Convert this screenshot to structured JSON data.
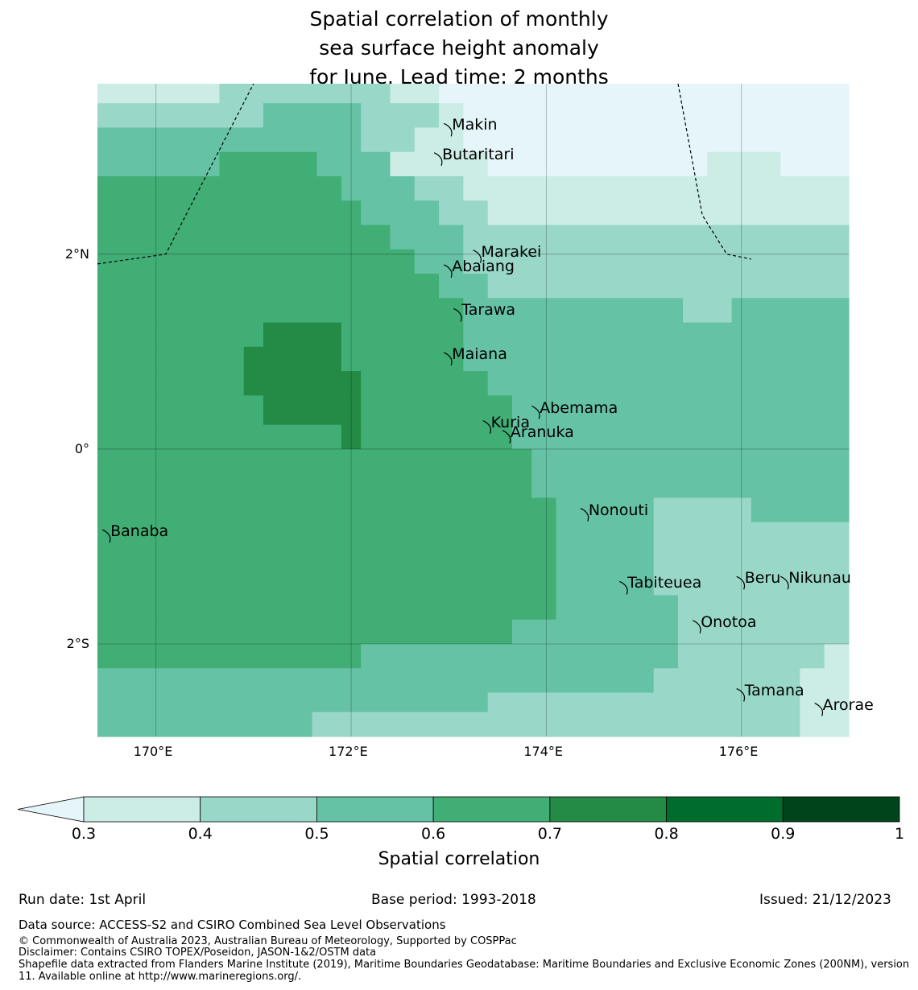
{
  "title_lines": [
    "Spatial correlation of monthly",
    "sea surface height anomaly",
    "for June. Lead time: 2 months"
  ],
  "map": {
    "lon_range": [
      169.4,
      177.1
    ],
    "lat_range": [
      -2.95,
      3.75
    ],
    "lon_ticks": [
      {
        "lon": 170,
        "label": "170°E"
      },
      {
        "lon": 172,
        "label": "172°E"
      },
      {
        "lon": 174,
        "label": "174°E"
      },
      {
        "lon": 176,
        "label": "176°E"
      }
    ],
    "lat_ticks": [
      {
        "lat": 2,
        "label": "2°N"
      },
      {
        "lat": 0,
        "label": "0°"
      },
      {
        "lat": -2,
        "label": "2°S"
      }
    ],
    "islands": [
      {
        "name": "Makin",
        "lon": 173.0,
        "lat": 3.3
      },
      {
        "name": "Butaritari",
        "lon": 172.9,
        "lat": 3.0
      },
      {
        "name": "Marakei",
        "lon": 173.3,
        "lat": 2.0
      },
      {
        "name": "Abaiang",
        "lon": 173.0,
        "lat": 1.85
      },
      {
        "name": "Tarawa",
        "lon": 173.1,
        "lat": 1.4
      },
      {
        "name": "Maiana",
        "lon": 173.0,
        "lat": 0.95
      },
      {
        "name": "Abemama",
        "lon": 173.9,
        "lat": 0.4
      },
      {
        "name": "Kuria",
        "lon": 173.4,
        "lat": 0.25
      },
      {
        "name": "Aranuka",
        "lon": 173.6,
        "lat": 0.15
      },
      {
        "name": "Nonouti",
        "lon": 174.4,
        "lat": -0.65
      },
      {
        "name": "Banaba",
        "lon": 169.5,
        "lat": -0.87
      },
      {
        "name": "Tabiteuea",
        "lon": 174.8,
        "lat": -1.4
      },
      {
        "name": "Beru",
        "lon": 176.0,
        "lat": -1.35
      },
      {
        "name": "Nikunau",
        "lon": 176.45,
        "lat": -1.35
      },
      {
        "name": "Onotoa",
        "lon": 175.55,
        "lat": -1.8
      },
      {
        "name": "Tamana",
        "lon": 176.0,
        "lat": -2.5
      },
      {
        "name": "Arorae",
        "lon": 176.8,
        "lat": -2.65
      }
    ],
    "grid_cells": [
      {
        "lon0": 169.4,
        "lon1": 170.65,
        "lat0": 3.55,
        "lat1": 3.75,
        "level": 0
      },
      {
        "lon0": 170.65,
        "lon1": 172.4,
        "lat0": 3.55,
        "lat1": 3.75,
        "level": 1
      },
      {
        "lon0": 172.4,
        "lon1": 172.9,
        "lat0": 3.55,
        "lat1": 3.75,
        "level": 0
      },
      {
        "lon0": 172.9,
        "lon1": 177.1,
        "lat0": 3.55,
        "lat1": 3.75,
        "level": -1
      },
      {
        "lon0": 169.4,
        "lon1": 171.1,
        "lat0": 3.3,
        "lat1": 3.55,
        "level": 1
      },
      {
        "lon0": 171.1,
        "lon1": 172.1,
        "lat0": 3.3,
        "lat1": 3.55,
        "level": 2
      },
      {
        "lon0": 172.1,
        "lon1": 172.9,
        "lat0": 3.3,
        "lat1": 3.55,
        "level": 1
      },
      {
        "lon0": 172.9,
        "lon1": 173.15,
        "lat0": 3.3,
        "lat1": 3.55,
        "level": 0
      },
      {
        "lon0": 173.15,
        "lon1": 177.1,
        "lat0": 3.3,
        "lat1": 3.55,
        "level": -1
      },
      {
        "lon0": 169.4,
        "lon1": 172.1,
        "lat0": 3.05,
        "lat1": 3.3,
        "level": 2
      },
      {
        "lon0": 172.1,
        "lon1": 172.65,
        "lat0": 3.05,
        "lat1": 3.3,
        "level": 1
      },
      {
        "lon0": 172.65,
        "lon1": 173.15,
        "lat0": 3.05,
        "lat1": 3.3,
        "level": 0
      },
      {
        "lon0": 173.15,
        "lon1": 177.1,
        "lat0": 3.05,
        "lat1": 3.3,
        "level": -1
      },
      {
        "lon0": 169.4,
        "lon1": 170.65,
        "lat0": 2.8,
        "lat1": 3.05,
        "level": 2
      },
      {
        "lon0": 170.65,
        "lon1": 171.65,
        "lat0": 2.8,
        "lat1": 3.05,
        "level": 3
      },
      {
        "lon0": 171.65,
        "lon1": 172.4,
        "lat0": 2.8,
        "lat1": 3.05,
        "level": 2
      },
      {
        "lon0": 172.4,
        "lon1": 173.4,
        "lat0": 2.8,
        "lat1": 3.05,
        "level": 0
      },
      {
        "lon0": 173.4,
        "lon1": 175.65,
        "lat0": 2.8,
        "lat1": 3.05,
        "level": -1
      },
      {
        "lon0": 175.65,
        "lon1": 176.4,
        "lat0": 2.8,
        "lat1": 3.05,
        "level": 0
      },
      {
        "lon0": 176.4,
        "lon1": 177.1,
        "lat0": 2.8,
        "lat1": 3.05,
        "level": -1
      },
      {
        "lon0": 169.4,
        "lon1": 171.9,
        "lat0": 2.55,
        "lat1": 2.8,
        "level": 3
      },
      {
        "lon0": 171.9,
        "lon1": 172.65,
        "lat0": 2.55,
        "lat1": 2.8,
        "level": 2
      },
      {
        "lon0": 172.65,
        "lon1": 173.15,
        "lat0": 2.55,
        "lat1": 2.8,
        "level": 1
      },
      {
        "lon0": 173.15,
        "lon1": 177.1,
        "lat0": 2.55,
        "lat1": 2.8,
        "level": 0
      },
      {
        "lon0": 169.4,
        "lon1": 172.1,
        "lat0": 2.3,
        "lat1": 2.55,
        "level": 3
      },
      {
        "lon0": 172.1,
        "lon1": 172.9,
        "lat0": 2.3,
        "lat1": 2.55,
        "level": 2
      },
      {
        "lon0": 172.9,
        "lon1": 173.4,
        "lat0": 2.3,
        "lat1": 2.55,
        "level": 1
      },
      {
        "lon0": 173.4,
        "lon1": 177.1,
        "lat0": 2.3,
        "lat1": 2.55,
        "level": 0
      },
      {
        "lon0": 169.4,
        "lon1": 172.4,
        "lat0": 2.05,
        "lat1": 2.3,
        "level": 3
      },
      {
        "lon0": 172.4,
        "lon1": 173.15,
        "lat0": 2.05,
        "lat1": 2.3,
        "level": 2
      },
      {
        "lon0": 173.15,
        "lon1": 173.4,
        "lat0": 2.05,
        "lat1": 2.3,
        "level": 1
      },
      {
        "lon0": 173.4,
        "lon1": 177.1,
        "lat0": 2.05,
        "lat1": 2.3,
        "level": 1
      },
      {
        "lon0": 169.4,
        "lon1": 172.65,
        "lat0": 1.8,
        "lat1": 2.05,
        "level": 3
      },
      {
        "lon0": 172.65,
        "lon1": 173.15,
        "lat0": 1.8,
        "lat1": 2.05,
        "level": 2
      },
      {
        "lon0": 173.15,
        "lon1": 177.1,
        "lat0": 1.8,
        "lat1": 2.05,
        "level": 1
      },
      {
        "lon0": 169.4,
        "lon1": 172.9,
        "lat0": 1.55,
        "lat1": 1.8,
        "level": 3
      },
      {
        "lon0": 172.9,
        "lon1": 173.4,
        "lat0": 1.55,
        "lat1": 1.8,
        "level": 2
      },
      {
        "lon0": 173.4,
        "lon1": 177.1,
        "lat0": 1.55,
        "lat1": 1.8,
        "level": 1
      },
      {
        "lon0": 169.4,
        "lon1": 173.15,
        "lat0": 1.3,
        "lat1": 1.55,
        "level": 3
      },
      {
        "lon0": 173.15,
        "lon1": 175.4,
        "lat0": 1.3,
        "lat1": 1.55,
        "level": 2
      },
      {
        "lon0": 175.4,
        "lon1": 175.9,
        "lat0": 1.3,
        "lat1": 1.55,
        "level": 1
      },
      {
        "lon0": 175.9,
        "lon1": 177.1,
        "lat0": 1.3,
        "lat1": 1.55,
        "level": 2
      },
      {
        "lon0": 169.4,
        "lon1": 171.1,
        "lat0": 1.05,
        "lat1": 1.3,
        "level": 3
      },
      {
        "lon0": 171.1,
        "lon1": 171.9,
        "lat0": 1.05,
        "lat1": 1.3,
        "level": 4
      },
      {
        "lon0": 171.9,
        "lon1": 173.15,
        "lat0": 1.05,
        "lat1": 1.3,
        "level": 3
      },
      {
        "lon0": 173.15,
        "lon1": 177.1,
        "lat0": 1.05,
        "lat1": 1.3,
        "level": 2
      },
      {
        "lon0": 169.4,
        "lon1": 170.9,
        "lat0": 0.8,
        "lat1": 1.05,
        "level": 3
      },
      {
        "lon0": 170.9,
        "lon1": 171.9,
        "lat0": 0.8,
        "lat1": 1.05,
        "level": 4
      },
      {
        "lon0": 171.9,
        "lon1": 173.15,
        "lat0": 0.8,
        "lat1": 1.05,
        "level": 3
      },
      {
        "lon0": 173.15,
        "lon1": 177.1,
        "lat0": 0.8,
        "lat1": 1.05,
        "level": 2
      },
      {
        "lon0": 169.4,
        "lon1": 170.9,
        "lat0": 0.55,
        "lat1": 0.8,
        "level": 3
      },
      {
        "lon0": 170.9,
        "lon1": 172.1,
        "lat0": 0.55,
        "lat1": 0.8,
        "level": 4
      },
      {
        "lon0": 172.1,
        "lon1": 173.4,
        "lat0": 0.55,
        "lat1": 0.8,
        "level": 3
      },
      {
        "lon0": 173.4,
        "lon1": 177.1,
        "lat0": 0.55,
        "lat1": 0.8,
        "level": 2
      },
      {
        "lon0": 169.4,
        "lon1": 171.1,
        "lat0": 0.25,
        "lat1": 0.55,
        "level": 3
      },
      {
        "lon0": 171.1,
        "lon1": 172.1,
        "lat0": 0.25,
        "lat1": 0.55,
        "level": 4
      },
      {
        "lon0": 172.1,
        "lon1": 173.65,
        "lat0": 0.25,
        "lat1": 0.55,
        "level": 3
      },
      {
        "lon0": 173.65,
        "lon1": 177.1,
        "lat0": 0.25,
        "lat1": 0.55,
        "level": 2
      },
      {
        "lon0": 169.4,
        "lon1": 171.9,
        "lat0": 0.0,
        "lat1": 0.25,
        "level": 3
      },
      {
        "lon0": 171.9,
        "lon1": 172.1,
        "lat0": 0.0,
        "lat1": 0.25,
        "level": 4
      },
      {
        "lon0": 172.1,
        "lon1": 173.65,
        "lat0": 0.0,
        "lat1": 0.25,
        "level": 3
      },
      {
        "lon0": 173.65,
        "lon1": 177.1,
        "lat0": 0.0,
        "lat1": 0.25,
        "level": 2
      },
      {
        "lon0": 169.4,
        "lon1": 173.85,
        "lat0": -0.25,
        "lat1": 0.0,
        "level": 3
      },
      {
        "lon0": 173.85,
        "lon1": 177.1,
        "lat0": -0.25,
        "lat1": 0.0,
        "level": 2
      },
      {
        "lon0": 169.4,
        "lon1": 173.85,
        "lat0": -0.5,
        "lat1": -0.25,
        "level": 3
      },
      {
        "lon0": 173.85,
        "lon1": 177.1,
        "lat0": -0.5,
        "lat1": -0.25,
        "level": 2
      },
      {
        "lon0": 169.4,
        "lon1": 174.1,
        "lat0": -0.75,
        "lat1": -0.5,
        "level": 3
      },
      {
        "lon0": 174.1,
        "lon1": 175.1,
        "lat0": -0.75,
        "lat1": -0.5,
        "level": 2
      },
      {
        "lon0": 175.1,
        "lon1": 176.1,
        "lat0": -0.75,
        "lat1": -0.5,
        "level": 1
      },
      {
        "lon0": 176.1,
        "lon1": 177.1,
        "lat0": -0.75,
        "lat1": -0.5,
        "level": 2
      },
      {
        "lon0": 169.4,
        "lon1": 174.1,
        "lat0": -1.75,
        "lat1": -0.75,
        "level": 3
      },
      {
        "lon0": 174.1,
        "lon1": 175.1,
        "lat0": -1.75,
        "lat1": -0.75,
        "level": 2
      },
      {
        "lon0": 175.1,
        "lon1": 177.1,
        "lat0": -1.5,
        "lat1": -0.75,
        "level": 1
      },
      {
        "lon0": 175.1,
        "lon1": 175.35,
        "lat0": -1.75,
        "lat1": -1.5,
        "level": 2
      },
      {
        "lon0": 175.35,
        "lon1": 177.1,
        "lat0": -1.75,
        "lat1": -1.5,
        "level": 1
      },
      {
        "lon0": 169.4,
        "lon1": 173.65,
        "lat0": -2.0,
        "lat1": -1.75,
        "level": 3
      },
      {
        "lon0": 173.65,
        "lon1": 175.35,
        "lat0": -2.0,
        "lat1": -1.75,
        "level": 2
      },
      {
        "lon0": 175.35,
        "lon1": 177.1,
        "lat0": -2.0,
        "lat1": -1.75,
        "level": 1
      },
      {
        "lon0": 169.4,
        "lon1": 172.1,
        "lat0": -2.25,
        "lat1": -2.0,
        "level": 3
      },
      {
        "lon0": 172.1,
        "lon1": 175.35,
        "lat0": -2.25,
        "lat1": -2.0,
        "level": 2
      },
      {
        "lon0": 175.35,
        "lon1": 176.85,
        "lat0": -2.25,
        "lat1": -2.0,
        "level": 1
      },
      {
        "lon0": 176.85,
        "lon1": 177.1,
        "lat0": -2.25,
        "lat1": -2.0,
        "level": 0
      },
      {
        "lon0": 169.4,
        "lon1": 175.1,
        "lat0": -2.5,
        "lat1": -2.25,
        "level": 2
      },
      {
        "lon0": 175.1,
        "lon1": 176.6,
        "lat0": -2.5,
        "lat1": -2.25,
        "level": 1
      },
      {
        "lon0": 176.6,
        "lon1": 177.1,
        "lat0": -2.5,
        "lat1": -2.25,
        "level": 0
      },
      {
        "lon0": 169.4,
        "lon1": 173.4,
        "lat0": -2.7,
        "lat1": -2.5,
        "level": 2
      },
      {
        "lon0": 173.4,
        "lon1": 176.6,
        "lat0": -2.7,
        "lat1": -2.5,
        "level": 1
      },
      {
        "lon0": 176.6,
        "lon1": 177.1,
        "lat0": -2.7,
        "lat1": -2.5,
        "level": 0
      },
      {
        "lon0": 169.4,
        "lon1": 171.6,
        "lat0": -2.95,
        "lat1": -2.7,
        "level": 2
      },
      {
        "lon0": 171.6,
        "lon1": 176.6,
        "lat0": -2.95,
        "lat1": -2.7,
        "level": 1
      },
      {
        "lon0": 176.6,
        "lon1": 177.1,
        "lat0": -2.95,
        "lat1": -2.7,
        "level": 0
      }
    ],
    "eez_boundaries": [
      [
        [
          169.4,
          1.9
        ],
        [
          170.1,
          2.0
        ],
        [
          171.0,
          3.75
        ]
      ],
      [
        [
          175.35,
          3.75
        ],
        [
          175.6,
          2.4
        ],
        [
          175.85,
          2.0
        ],
        [
          176.1,
          1.95
        ]
      ]
    ]
  },
  "colorbar": {
    "label": "Spatial correlation",
    "ticks": [
      "0.3",
      "0.4",
      "0.5",
      "0.6",
      "0.7",
      "0.8",
      "0.9",
      "1"
    ],
    "colors": [
      "#e5f5f9",
      "#ccece6",
      "#99d8c9",
      "#66c2a4",
      "#41ae76",
      "#238b45",
      "#006d2c",
      "#00441b"
    ]
  },
  "footer": {
    "run_date": "Run date: 1st April",
    "base_period": "Base period: 1993-2018",
    "issued": "Issued: 21/12/2023",
    "data_source": "Data source: ACCESS-S2 and CSIRO Combined Sea Level Observations",
    "copyright": "© Commonwealth of Australia 2023, Australian Bureau of Meteorology, Supported by COSPPac",
    "disclaimer": "Disclaimer: Contains CSIRO TOPEX/Poseidon, JASON-1&2/OSTM data",
    "shapefile": "Shapefile data extracted from Flanders Marine Institute (2019), Maritime Boundaries Geodatabase: Maritime Boundaries and Exclusive Economic Zones (200NM), version 11. Available online at http://www.marineregions.org/."
  }
}
